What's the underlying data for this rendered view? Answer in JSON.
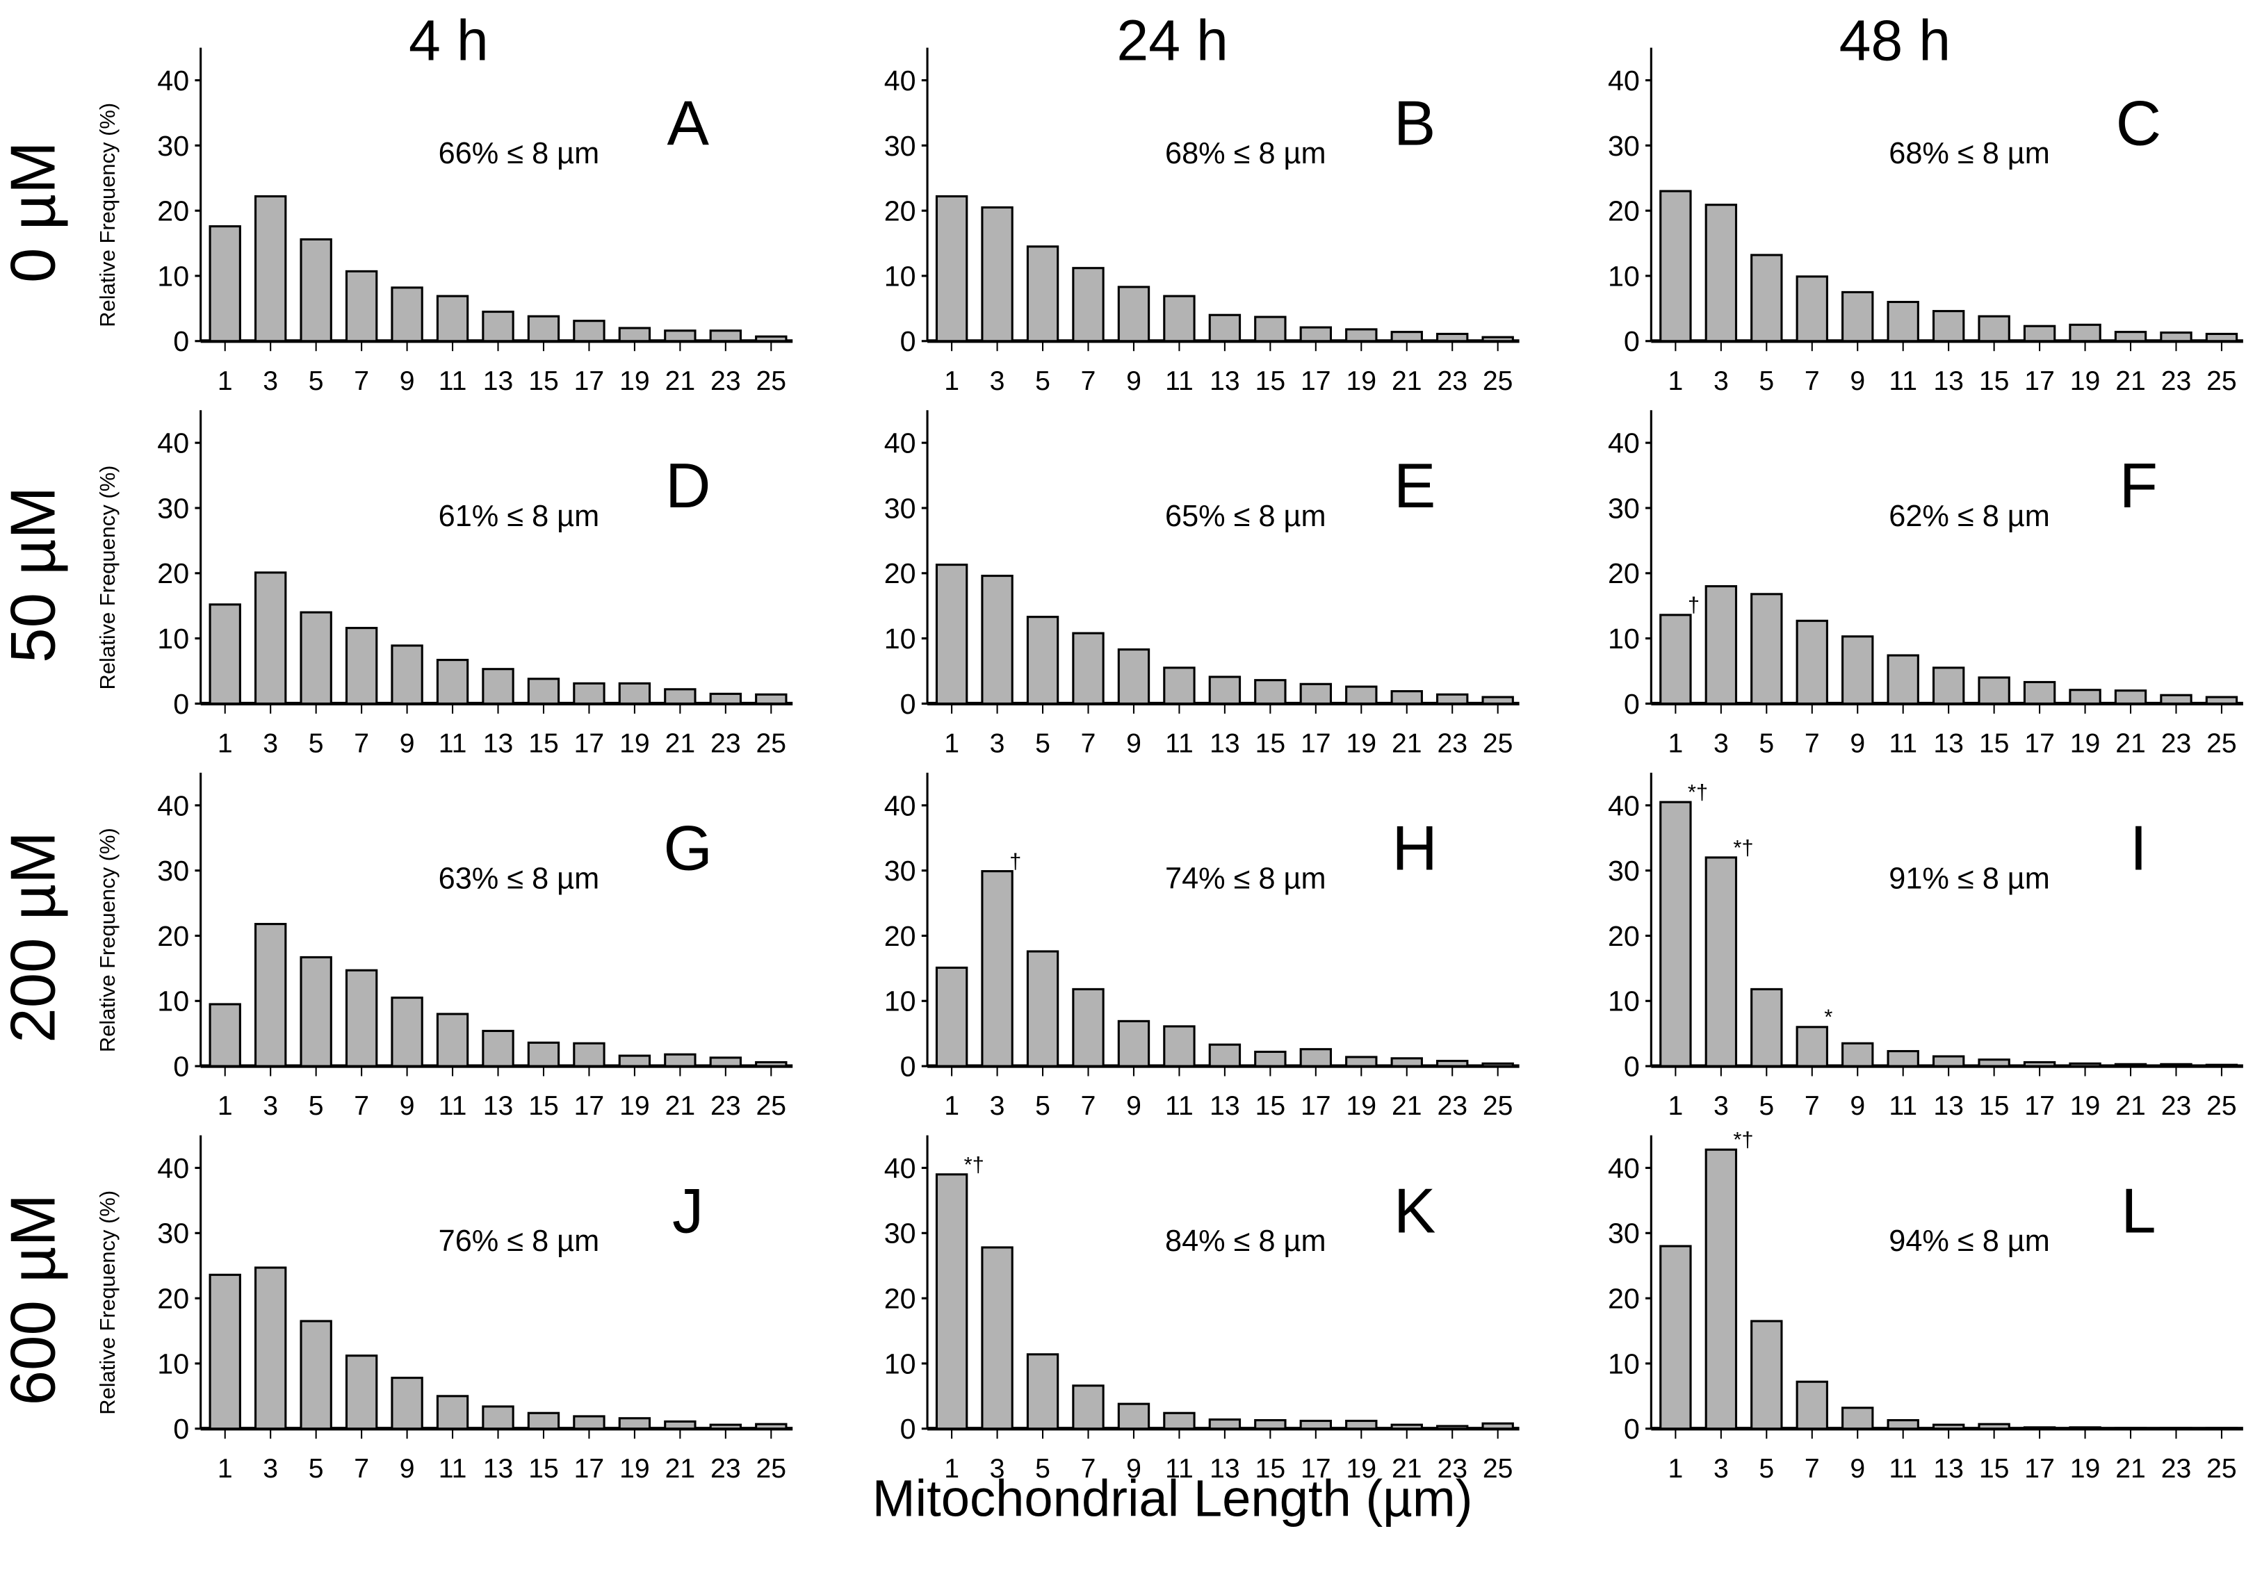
{
  "colors": {
    "bar_fill": "#b3b3b3",
    "bar_stroke": "#000000",
    "text": "#000000"
  },
  "column_titles": [
    "4 h",
    "24 h",
    "48 h"
  ],
  "row_titles": [
    "0 µM",
    "50 µM",
    "200 µM",
    "600 µM"
  ],
  "xlabel": "Mitochondrial Length (µm)",
  "ylabel": "Relative Frequency (%)",
  "chart_data": [
    {
      "type": "bar",
      "panel": "A",
      "annotation": "66% ≤ 8 µm",
      "categories": [
        "1",
        "3",
        "5",
        "7",
        "9",
        "11",
        "13",
        "15",
        "17",
        "19",
        "21",
        "23",
        "25"
      ],
      "values": [
        17.6,
        22.2,
        15.6,
        10.7,
        8.2,
        6.9,
        4.5,
        3.8,
        3.1,
        2.0,
        1.6,
        1.6,
        0.7
      ],
      "marks": {},
      "ylim": [
        0,
        45
      ],
      "yticks": [
        0,
        10,
        20,
        30,
        40
      ]
    },
    {
      "type": "bar",
      "panel": "B",
      "annotation": "68% ≤ 8 µm",
      "categories": [
        "1",
        "3",
        "5",
        "7",
        "9",
        "11",
        "13",
        "15",
        "17",
        "19",
        "21",
        "23",
        "25"
      ],
      "values": [
        22.2,
        20.5,
        14.5,
        11.2,
        8.3,
        6.9,
        4.0,
        3.7,
        2.1,
        1.8,
        1.4,
        1.1,
        0.6
      ],
      "marks": {},
      "ylim": [
        0,
        45
      ],
      "yticks": [
        0,
        10,
        20,
        30,
        40
      ]
    },
    {
      "type": "bar",
      "panel": "C",
      "annotation": "68% ≤ 8 µm",
      "categories": [
        "1",
        "3",
        "5",
        "7",
        "9",
        "11",
        "13",
        "15",
        "17",
        "19",
        "21",
        "23",
        "25"
      ],
      "values": [
        23.0,
        20.9,
        13.2,
        9.9,
        7.5,
        6.0,
        4.6,
        3.8,
        2.3,
        2.5,
        1.4,
        1.3,
        1.1
      ],
      "marks": {},
      "ylim": [
        0,
        45
      ],
      "yticks": [
        0,
        10,
        20,
        30,
        40
      ]
    },
    {
      "type": "bar",
      "panel": "D",
      "annotation": "61% ≤ 8 µm",
      "categories": [
        "1",
        "3",
        "5",
        "7",
        "9",
        "11",
        "13",
        "15",
        "17",
        "19",
        "21",
        "23",
        "25"
      ],
      "values": [
        15.2,
        20.1,
        14.0,
        11.6,
        8.9,
        6.7,
        5.3,
        3.8,
        3.1,
        3.1,
        2.2,
        1.5,
        1.4
      ],
      "marks": {},
      "ylim": [
        0,
        45
      ],
      "yticks": [
        0,
        10,
        20,
        30,
        40
      ]
    },
    {
      "type": "bar",
      "panel": "E",
      "annotation": "65% ≤ 8 µm",
      "categories": [
        "1",
        "3",
        "5",
        "7",
        "9",
        "11",
        "13",
        "15",
        "17",
        "19",
        "21",
        "23",
        "25"
      ],
      "values": [
        21.3,
        19.6,
        13.3,
        10.8,
        8.3,
        5.5,
        4.1,
        3.6,
        3.0,
        2.6,
        1.9,
        1.4,
        1.0
      ],
      "marks": {},
      "ylim": [
        0,
        45
      ],
      "yticks": [
        0,
        10,
        20,
        30,
        40
      ]
    },
    {
      "type": "bar",
      "panel": "F",
      "annotation": "62% ≤ 8 µm",
      "categories": [
        "1",
        "3",
        "5",
        "7",
        "9",
        "11",
        "13",
        "15",
        "17",
        "19",
        "21",
        "23",
        "25"
      ],
      "values": [
        13.6,
        18.0,
        16.8,
        12.7,
        10.3,
        7.4,
        5.5,
        4.0,
        3.3,
        2.1,
        2.0,
        1.3,
        1.0
      ],
      "marks": {
        "0": "†"
      },
      "ylim": [
        0,
        45
      ],
      "yticks": [
        0,
        10,
        20,
        30,
        40
      ]
    },
    {
      "type": "bar",
      "panel": "G",
      "annotation": "63% ≤ 8 µm",
      "categories": [
        "1",
        "3",
        "5",
        "7",
        "9",
        "11",
        "13",
        "15",
        "17",
        "19",
        "21",
        "23",
        "25"
      ],
      "values": [
        9.5,
        21.8,
        16.7,
        14.7,
        10.5,
        8.0,
        5.4,
        3.6,
        3.5,
        1.6,
        1.8,
        1.3,
        0.6
      ],
      "marks": {},
      "ylim": [
        0,
        45
      ],
      "yticks": [
        0,
        10,
        20,
        30,
        40
      ]
    },
    {
      "type": "bar",
      "panel": "H",
      "annotation": "74% ≤ 8 µm",
      "categories": [
        "1",
        "3",
        "5",
        "7",
        "9",
        "11",
        "13",
        "15",
        "17",
        "19",
        "21",
        "23",
        "25"
      ],
      "values": [
        15.1,
        29.9,
        17.6,
        11.8,
        6.9,
        6.1,
        3.3,
        2.2,
        2.6,
        1.4,
        1.2,
        0.8,
        0.4
      ],
      "marks": {
        "1": "†"
      },
      "ylim": [
        0,
        45
      ],
      "yticks": [
        0,
        10,
        20,
        30,
        40
      ]
    },
    {
      "type": "bar",
      "panel": "I",
      "annotation": "91% ≤ 8 µm",
      "categories": [
        "1",
        "3",
        "5",
        "7",
        "9",
        "11",
        "13",
        "15",
        "17",
        "19",
        "21",
        "23",
        "25"
      ],
      "values": [
        40.5,
        32.0,
        11.8,
        6.0,
        3.5,
        2.3,
        1.5,
        1.0,
        0.6,
        0.4,
        0.3,
        0.3,
        0.2
      ],
      "marks": {
        "0": "*†",
        "1": "*†",
        "3": "*"
      },
      "ylim": [
        0,
        45
      ],
      "yticks": [
        0,
        10,
        20,
        30,
        40
      ]
    },
    {
      "type": "bar",
      "panel": "J",
      "annotation": "76% ≤ 8 µm",
      "categories": [
        "1",
        "3",
        "5",
        "7",
        "9",
        "11",
        "13",
        "15",
        "17",
        "19",
        "21",
        "23",
        "25"
      ],
      "values": [
        23.6,
        24.7,
        16.5,
        11.2,
        7.8,
        5.0,
        3.4,
        2.4,
        1.9,
        1.6,
        1.1,
        0.6,
        0.7
      ],
      "marks": {},
      "ylim": [
        0,
        45
      ],
      "yticks": [
        0,
        10,
        20,
        30,
        40
      ]
    },
    {
      "type": "bar",
      "panel": "K",
      "annotation": "84% ≤ 8 µm",
      "categories": [
        "1",
        "3",
        "5",
        "7",
        "9",
        "11",
        "13",
        "15",
        "17",
        "19",
        "21",
        "23",
        "25"
      ],
      "values": [
        39.0,
        27.8,
        11.4,
        6.6,
        3.8,
        2.4,
        1.4,
        1.3,
        1.2,
        1.2,
        0.6,
        0.4,
        0.8
      ],
      "marks": {
        "0": "*†"
      },
      "ylim": [
        0,
        45
      ],
      "yticks": [
        0,
        10,
        20,
        30,
        40
      ]
    },
    {
      "type": "bar",
      "panel": "L",
      "annotation": "94% ≤ 8 µm",
      "categories": [
        "1",
        "3",
        "5",
        "7",
        "9",
        "11",
        "13",
        "15",
        "17",
        "19",
        "21",
        "23",
        "25"
      ],
      "values": [
        28.0,
        42.8,
        16.5,
        7.2,
        3.2,
        1.3,
        0.6,
        0.7,
        0.2,
        0.2,
        0.1,
        0.1,
        0.1
      ],
      "marks": {
        "1": "*†"
      },
      "ylim": [
        0,
        45
      ],
      "yticks": [
        0,
        10,
        20,
        30,
        40
      ]
    }
  ]
}
